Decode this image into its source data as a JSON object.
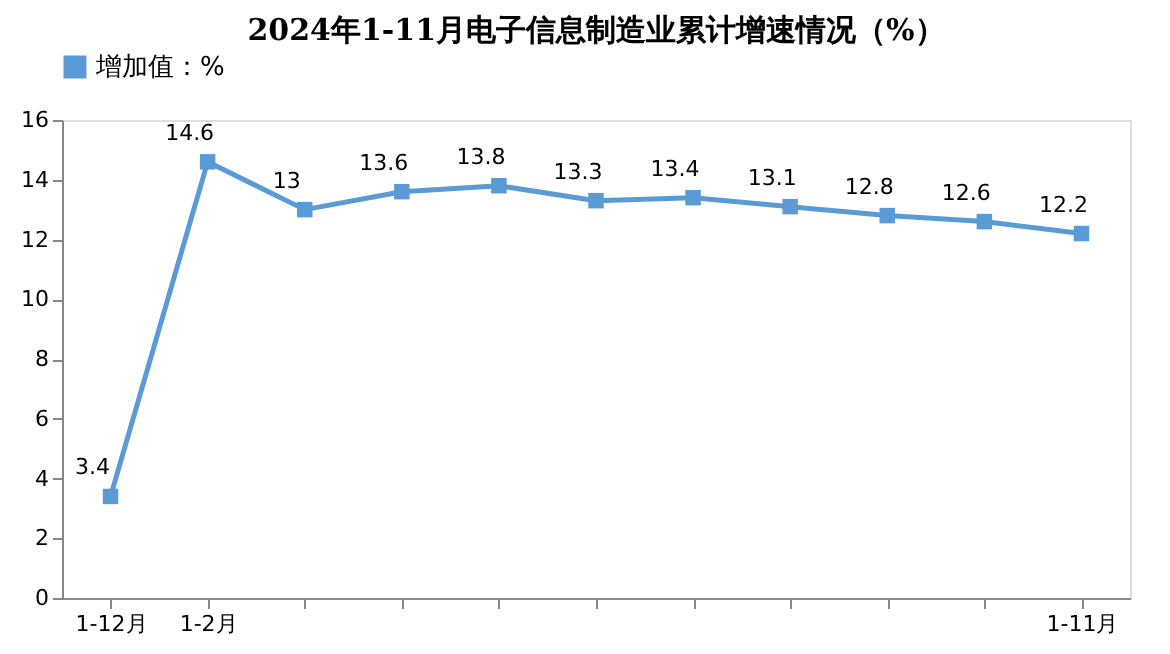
{
  "chart_data": {
    "type": "line",
    "title": "2024年1-11月电子信息制造业累计增速情况（%）",
    "categories": [
      "1-12月",
      "1-2月",
      null,
      null,
      null,
      null,
      null,
      null,
      null,
      null,
      "1-11月"
    ],
    "series": [
      {
        "name": "增加值：%",
        "color": "#5b9bd5",
        "values": [
          3.4,
          14.6,
          13,
          13.6,
          13.8,
          13.3,
          13.4,
          13.1,
          12.8,
          12.6,
          12.2
        ]
      }
    ],
    "ylim": [
      0,
      16
    ],
    "yticks": [
      0,
      2,
      4,
      6,
      8,
      10,
      12,
      14,
      16
    ],
    "grid": false,
    "legend": "top",
    "marker": "square",
    "data_labels": true
  }
}
